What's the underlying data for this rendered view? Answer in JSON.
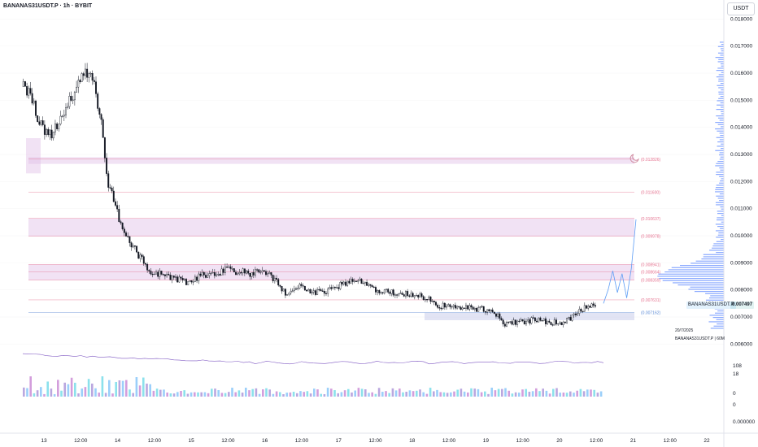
{
  "header": {
    "title": "BANANAS31USDT.P · 1h · BYBIT",
    "currency_button": "USDT"
  },
  "markers": {
    "price_tag_symbol": "BANANAS31USDT.P",
    "price_tag_value": "0.007497",
    "date_note": "20/7/2025",
    "symbol_note": "BANANAS31USDT.P | 60M"
  },
  "indicator_labels": [
    "108",
    "18",
    "0",
    "0",
    "0.000000"
  ],
  "chart_data": {
    "type": "candlestick",
    "title": "BANANAS31USDT.P · 1h · BYBIT",
    "ylim": [
      0.0058,
      0.0181
    ],
    "y_ticks": [
      "0.018000",
      "0.017000",
      "0.016000",
      "0.015000",
      "0.014000",
      "0.013000",
      "0.012000",
      "0.011000",
      "0.010000",
      "0.009000",
      "0.008000",
      "0.007000",
      "0.006000"
    ],
    "x_ticks": [
      "13",
      "12:00",
      "14",
      "12:00",
      "15",
      "12:00",
      "16",
      "12:00",
      "17",
      "12:00",
      "18",
      "12:00",
      "19",
      "12:00",
      "20",
      "12:00",
      "21",
      "12:00",
      "22"
    ],
    "last_price": 0.007497,
    "levels": [
      {
        "label": "(0.012826)",
        "value": 0.012826
      },
      {
        "label": "(0.011600)",
        "value": 0.0116
      },
      {
        "label": "(0.010637)",
        "value": 0.010637
      },
      {
        "label": "(0.009978)",
        "value": 0.009978
      },
      {
        "label": "(0.008941)",
        "value": 0.008941
      },
      {
        "label": "(0.008664)",
        "value": 0.008664
      },
      {
        "label": "(0.008359)",
        "value": 0.008359
      },
      {
        "label": "(0.007631)",
        "value": 0.007631
      },
      {
        "label": "(0.007162)",
        "value": 0.007162
      }
    ],
    "zones": [
      {
        "from": 0.01265,
        "to": 0.0129
      },
      {
        "from": 0.00998,
        "to": 0.01064
      },
      {
        "from": 0.00836,
        "to": 0.00894
      },
      {
        "from": 0.00688,
        "to": 0.00716
      },
      {
        "from": 0.0123,
        "to": 0.0136
      }
    ],
    "close_path": [
      0.0155,
      0.0152,
      0.0144,
      0.0139,
      0.0137,
      0.0142,
      0.0148,
      0.0151,
      0.0158,
      0.016,
      0.0156,
      0.0141,
      0.0118,
      0.0112,
      0.0101,
      0.0098,
      0.0094,
      0.009,
      0.0087,
      0.0086,
      0.0085,
      0.0084,
      0.0084,
      0.0083,
      0.0084,
      0.0085,
      0.0086,
      0.0085,
      0.0087,
      0.0088,
      0.0086,
      0.0087,
      0.0086,
      0.0087,
      0.0086,
      0.0085,
      0.0082,
      0.0079,
      0.008,
      0.0081,
      0.008,
      0.0079,
      0.0079,
      0.008,
      0.0081,
      0.0082,
      0.0083,
      0.0084,
      0.0083,
      0.0081,
      0.008,
      0.008,
      0.0079,
      0.0078,
      0.0079,
      0.0078,
      0.0078,
      0.0077,
      0.0075,
      0.0074,
      0.0074,
      0.0073,
      0.0074,
      0.0074,
      0.0073,
      0.0073,
      0.0072,
      0.0071,
      0.0067,
      0.0068,
      0.0068,
      0.0068,
      0.0069,
      0.0069,
      0.0068,
      0.0068,
      0.0068,
      0.0069,
      0.0071,
      0.0073,
      0.0074,
      0.0075
    ],
    "projection": [
      0.0075,
      0.008,
      0.0087,
      0.0079,
      0.0086,
      0.0077,
      0.0088,
      0.0106
    ],
    "volume_profile_peak": 0.00855
  }
}
